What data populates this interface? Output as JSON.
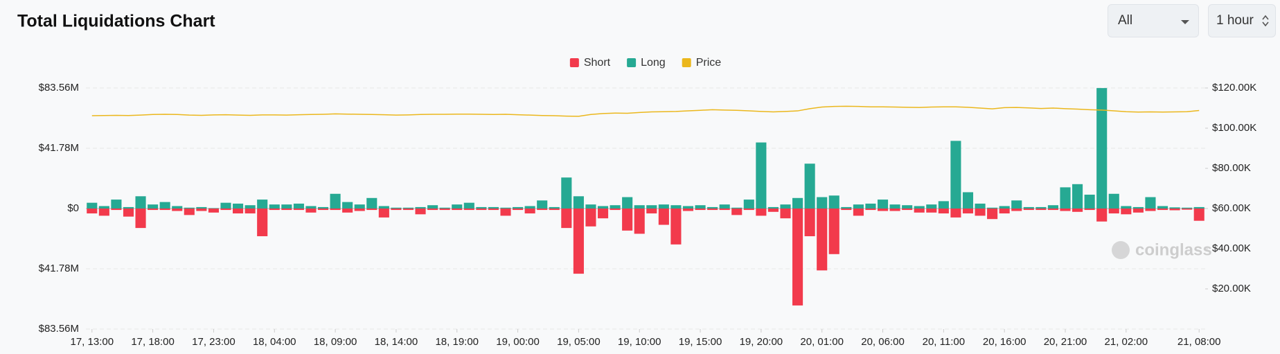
{
  "chart_data": {
    "type": "bar",
    "title": "Total Liquidations Chart",
    "categories": [
      "17, 13:00",
      null,
      null,
      null,
      null,
      "17, 18:00",
      null,
      null,
      null,
      null,
      "17, 23:00",
      null,
      null,
      null,
      null,
      "18, 04:00",
      null,
      null,
      null,
      null,
      "18, 09:00",
      null,
      null,
      null,
      null,
      "18, 14:00",
      null,
      null,
      null,
      null,
      "18, 19:00",
      null,
      null,
      null,
      null,
      "19, 00:00",
      null,
      null,
      null,
      null,
      "19, 05:00",
      null,
      null,
      null,
      null,
      "19, 10:00",
      null,
      null,
      null,
      null,
      "19, 15:00",
      null,
      null,
      null,
      null,
      "19, 20:00",
      null,
      null,
      null,
      null,
      "20, 01:00",
      null,
      null,
      null,
      null,
      "20, 06:00",
      null,
      null,
      null,
      null,
      "20, 11:00",
      null,
      null,
      null,
      null,
      "20, 16:00",
      null,
      null,
      null,
      null,
      "20, 21:00",
      null,
      null,
      null,
      null,
      "21, 02:00",
      null,
      null,
      null,
      null,
      null,
      "21, 08:00"
    ],
    "series": [
      {
        "name": "Short",
        "color": "#f23a4c",
        "values": [
          -3.4,
          -5,
          -1,
          -5.6,
          -13.5,
          -1,
          -1,
          -1.7,
          -4.5,
          -1.7,
          -2.8,
          -1,
          -3.4,
          -3.4,
          -19.2,
          -1,
          -1,
          -1,
          -2.8,
          -1,
          -1,
          -2.8,
          -1.7,
          -1,
          -6.2,
          -1,
          -1,
          -4,
          -1,
          -1,
          -1,
          -1,
          -1,
          -1,
          -5,
          -1,
          -3.4,
          -1,
          -1,
          -13.5,
          -45.2,
          -12.4,
          -6.8,
          -1,
          -15.3,
          -17.5,
          -3.4,
          -11.3,
          -24.9,
          -1.7,
          -1,
          -1,
          -1,
          -4.5,
          -1,
          -5,
          -2.3,
          -6.8,
          -67.2,
          -19.2,
          -42.9,
          -31.6,
          -1,
          -5,
          -1,
          -1.7,
          -1.7,
          -1,
          -2.8,
          -2.8,
          -3.4,
          -6.2,
          -3.4,
          -5,
          -7.3,
          -3.4,
          -1.7,
          -1,
          -1,
          -1,
          -1.7,
          -2.3,
          -1,
          -9,
          -3.4,
          -4,
          -2.8,
          -1.7,
          -1,
          -1.2,
          -0.8,
          -8.5
        ]
      },
      {
        "name": "Long",
        "color": "#26a993",
        "values": [
          4,
          1.7,
          6.2,
          1,
          8.5,
          2.8,
          4.5,
          1.7,
          0.6,
          1,
          0.3,
          4,
          3.4,
          2.3,
          6.2,
          2.8,
          2.8,
          3.4,
          1.7,
          1,
          10.2,
          4.5,
          2.8,
          7.3,
          1.7,
          0.6,
          0.6,
          1,
          2.3,
          0.6,
          2.8,
          4,
          1,
          1,
          0.6,
          1,
          1.7,
          5.6,
          1,
          21.5,
          8.5,
          2.8,
          1.7,
          2.3,
          7.9,
          2.3,
          2.3,
          2.8,
          2.3,
          1.7,
          2.3,
          1,
          2.8,
          0.6,
          6.2,
          45.8,
          1,
          2.8,
          7.3,
          31.1,
          7.9,
          9,
          1,
          2.8,
          3.4,
          6.2,
          2.8,
          2.3,
          1.7,
          2.8,
          5.1,
          46.9,
          11.3,
          3.4,
          0.6,
          1.7,
          5.6,
          1,
          1,
          2.3,
          14.7,
          16.9,
          9.6,
          83.5,
          10.2,
          1.7,
          1,
          7.9,
          1.7,
          0.8,
          0.6,
          1
        ]
      },
      {
        "name": "Price",
        "color": "#ebb71c",
        "type": "line",
        "axis": "y2",
        "values": [
          106.2,
          106.3,
          106.4,
          106.3,
          106.5,
          106.8,
          106.9,
          106.8,
          106.5,
          106.4,
          106.6,
          106.7,
          106.5,
          106.4,
          106.6,
          106.6,
          106.5,
          106.7,
          106.8,
          106.9,
          107.1,
          107.0,
          106.9,
          106.8,
          106.7,
          106.5,
          106.6,
          106.8,
          106.9,
          106.9,
          107.0,
          107.0,
          106.9,
          106.8,
          106.9,
          106.7,
          106.5,
          106.3,
          106.2,
          106.0,
          105.9,
          106.8,
          107.3,
          107.5,
          107.4,
          107.8,
          108.1,
          108.2,
          108.3,
          108.6,
          108.9,
          109.2,
          109.0,
          108.9,
          108.6,
          108.3,
          108.1,
          108.3,
          108.6,
          109.7,
          110.5,
          110.8,
          110.9,
          110.8,
          110.6,
          110.6,
          110.5,
          110.4,
          110.3,
          110.5,
          110.6,
          110.6,
          110.4,
          110.0,
          109.6,
          110.2,
          110.3,
          110.1,
          109.8,
          110.0,
          109.7,
          109.5,
          109.2,
          109.0,
          108.6,
          108.2,
          108.0,
          108.1,
          108.0,
          108.1,
          108.2,
          108.8
        ]
      }
    ],
    "ylim": [
      -83.56,
      83.56
    ],
    "yticks": [
      {
        "value": 83.56,
        "label": "$83.56M"
      },
      {
        "value": 41.78,
        "label": "$41.78M"
      },
      {
        "value": 0,
        "label": "$0"
      },
      {
        "value": -41.78,
        "label": "$41.78M"
      },
      {
        "value": -83.56,
        "label": "$83.56M"
      }
    ],
    "y2lim": [
      0,
      120
    ],
    "y2ticks": [
      {
        "value": 20,
        "label": "$20.00K"
      },
      {
        "value": 40,
        "label": "$40.00K"
      },
      {
        "value": 60,
        "label": "$60.00K"
      },
      {
        "value": 80,
        "label": "$80.00K"
      },
      {
        "value": 100,
        "label": "$100.00K"
      },
      {
        "value": 120,
        "label": "$120.00K"
      }
    ],
    "grid": true,
    "legend": "top"
  },
  "controls": {
    "market": "All",
    "interval": "1 hour"
  },
  "watermark": "coinglass"
}
